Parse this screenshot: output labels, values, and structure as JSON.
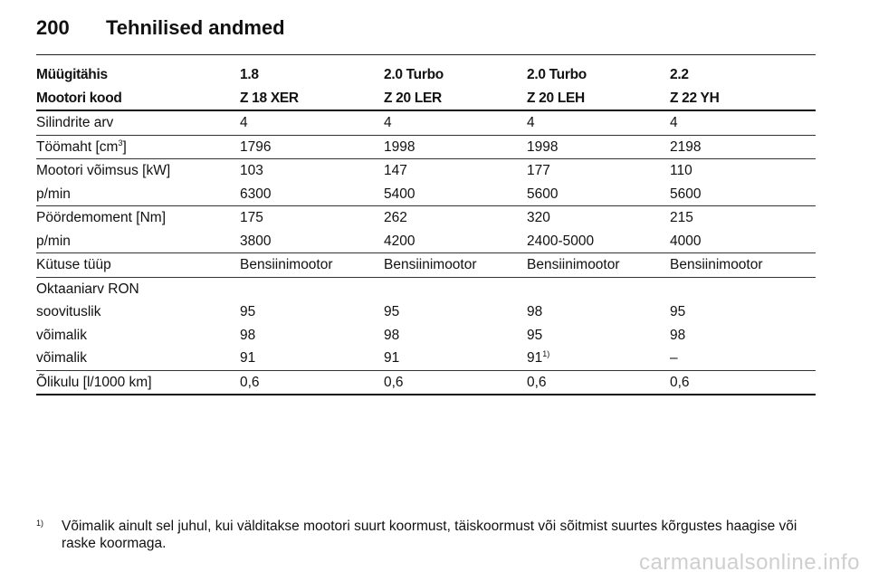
{
  "header": {
    "page_number": "200",
    "title": "Tehnilised andmed"
  },
  "table": {
    "head": [
      [
        "Müügitähis",
        "1.8",
        "2.0 Turbo",
        "2.0 Turbo",
        "2.2"
      ],
      [
        "Mootori kood",
        "Z 18 XER",
        "Z 20 LER",
        "Z 20 LEH",
        "Z 22 YH"
      ]
    ],
    "cylinders": [
      "Silindrite arv",
      "4",
      "4",
      "4",
      "4"
    ],
    "displacement": {
      "label": "Töömaht [cm",
      "label_sup": "3",
      "label_end": "]",
      "values": [
        "1796",
        "1998",
        "1998",
        "2198"
      ]
    },
    "power": [
      "Mootori võimsus [kW]",
      "103",
      "147",
      "177",
      "110"
    ],
    "power_rpm": [
      "p/min",
      "6300",
      "5400",
      "5600",
      "5600"
    ],
    "torque": [
      "Pöördemoment [Nm]",
      "175",
      "262",
      "320",
      "215"
    ],
    "torque_rpm": [
      "p/min",
      "3800",
      "4200",
      "2400-5000",
      "4000"
    ],
    "fuel_type": [
      "Kütuse tüüp",
      "Bensiinimootor",
      "Bensiinimootor",
      "Bensiinimootor",
      "Bensiinimootor"
    ],
    "octane_label": "Oktaaniarv RON",
    "octane_recommended": [
      "soovituslik",
      "95",
      "95",
      "98",
      "95"
    ],
    "octane_possible_1": [
      "võimalik",
      "98",
      "98",
      "95",
      "98"
    ],
    "octane_possible_2": [
      "võimalik",
      "91",
      "91",
      "91",
      "–"
    ],
    "octane_possible_2_footnote": "1)",
    "oil_consumption": [
      "Õlikulu [l/1000 km]",
      "0,6",
      "0,6",
      "0,6",
      "0,6"
    ]
  },
  "footnote": {
    "mark": "1)",
    "text": "Võimalik ainult sel juhul, kui välditakse mootori suurt koormust, täiskoormust või sõitmist suurtes kõrgustes haagise või raske koormaga."
  },
  "watermark": "carmanualsonline.info"
}
